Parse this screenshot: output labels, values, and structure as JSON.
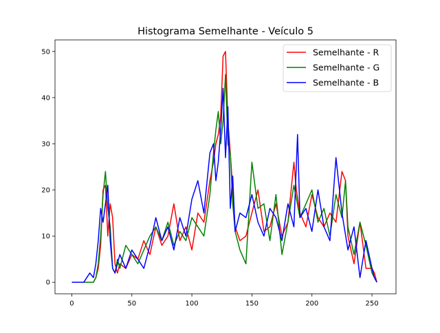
{
  "chart_data": {
    "type": "line",
    "title": "Histograma Semelhante - Veículo 5",
    "xlabel": "",
    "ylabel": "",
    "xlim": [
      -14,
      270
    ],
    "ylim": [
      -2.5,
      52.5
    ],
    "xticks": [
      0,
      50,
      100,
      150,
      200,
      250
    ],
    "yticks": [
      0,
      10,
      20,
      30,
      40,
      50
    ],
    "grid": false,
    "legend_position": "top-right",
    "series": [
      {
        "name": "Semelhante - R",
        "color": "#ff0000",
        "x": [
          0,
          10,
          18,
          20,
          22,
          24,
          26,
          28,
          30,
          32,
          34,
          36,
          38,
          40,
          45,
          50,
          55,
          60,
          65,
          70,
          75,
          80,
          85,
          90,
          95,
          100,
          105,
          110,
          115,
          118,
          120,
          122,
          124,
          126,
          128,
          130,
          132,
          134,
          136,
          140,
          145,
          150,
          155,
          160,
          165,
          170,
          175,
          180,
          185,
          187,
          190,
          195,
          200,
          205,
          210,
          215,
          220,
          225,
          228,
          230,
          235,
          240,
          245,
          250,
          252,
          254
        ],
        "values": [
          0,
          0,
          0,
          1,
          3,
          8,
          20,
          21,
          10,
          17,
          14,
          4,
          2,
          4,
          3,
          6,
          5,
          9,
          6,
          12,
          8,
          10,
          17,
          9,
          12,
          7,
          15,
          13,
          22,
          26,
          30,
          32,
          36,
          49,
          50,
          35,
          28,
          20,
          12,
          9,
          10,
          15,
          20,
          11,
          12,
          17,
          10,
          13,
          26,
          20,
          15,
          12,
          19,
          14,
          12,
          15,
          13,
          24,
          22,
          10,
          4,
          13,
          3,
          3,
          2,
          0
        ]
      },
      {
        "name": "Semelhante - G",
        "color": "#008000",
        "x": [
          0,
          10,
          18,
          20,
          22,
          24,
          26,
          28,
          30,
          32,
          34,
          36,
          38,
          40,
          45,
          50,
          55,
          60,
          65,
          70,
          75,
          80,
          85,
          90,
          95,
          100,
          105,
          110,
          115,
          118,
          120,
          122,
          124,
          126,
          128,
          130,
          132,
          134,
          136,
          140,
          145,
          150,
          155,
          160,
          165,
          170,
          175,
          180,
          185,
          190,
          195,
          200,
          205,
          210,
          215,
          220,
          225,
          228,
          230,
          235,
          240,
          245,
          250,
          252,
          254
        ],
        "values": [
          0,
          0,
          0,
          1,
          4,
          10,
          19,
          24,
          16,
          12,
          3,
          2,
          5,
          3,
          8,
          6,
          4,
          7,
          10,
          12,
          9,
          13,
          8,
          11,
          9,
          14,
          12,
          10,
          19,
          28,
          33,
          37,
          30,
          35,
          45,
          30,
          28,
          17,
          11,
          7,
          4,
          26,
          16,
          17,
          9,
          19,
          6,
          13,
          21,
          14,
          17,
          20,
          13,
          16,
          10,
          19,
          14,
          22,
          12,
          6,
          13,
          8,
          2,
          1,
          0
        ]
      },
      {
        "name": "Semelhante - B",
        "color": "#0000ff",
        "x": [
          0,
          10,
          15,
          18,
          20,
          22,
          24,
          26,
          28,
          30,
          32,
          34,
          36,
          38,
          40,
          45,
          50,
          55,
          60,
          65,
          70,
          75,
          80,
          85,
          90,
          95,
          100,
          105,
          110,
          115,
          118,
          120,
          122,
          124,
          126,
          128,
          130,
          132,
          134,
          136,
          140,
          145,
          150,
          155,
          160,
          165,
          170,
          175,
          180,
          185,
          188,
          190,
          195,
          200,
          205,
          210,
          215,
          220,
          225,
          230,
          235,
          240,
          245,
          250,
          252,
          254
        ],
        "values": [
          0,
          0,
          2,
          1,
          4,
          9,
          16,
          13,
          17,
          21,
          9,
          3,
          2,
          4,
          6,
          3,
          7,
          5,
          3,
          8,
          14,
          9,
          12,
          7,
          14,
          10,
          18,
          22,
          15,
          28,
          30,
          22,
          26,
          33,
          42,
          27,
          38,
          16,
          23,
          11,
          15,
          14,
          19,
          13,
          10,
          16,
          14,
          9,
          17,
          12,
          32,
          14,
          16,
          11,
          20,
          12,
          9,
          27,
          15,
          7,
          12,
          1,
          9,
          3,
          1,
          0
        ]
      }
    ]
  }
}
